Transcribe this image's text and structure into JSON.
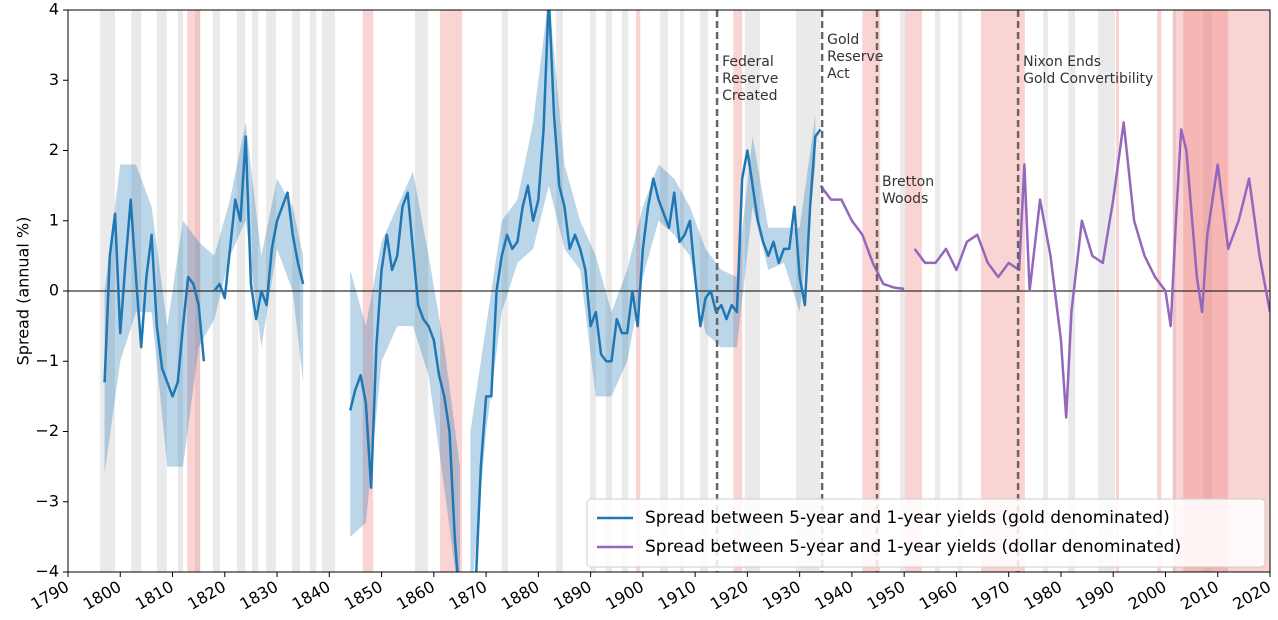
{
  "chart_data": {
    "type": "line",
    "y_label": "Spread (annual %)",
    "xlim": [
      1790,
      2020
    ],
    "ylim": [
      -4,
      4
    ],
    "xticks": [
      1790,
      1800,
      1810,
      1820,
      1830,
      1840,
      1850,
      1860,
      1870,
      1880,
      1890,
      1900,
      1910,
      1920,
      1930,
      1940,
      1950,
      1960,
      1970,
      1980,
      1990,
      2000,
      2010,
      2020
    ],
    "yticks": [
      {
        "value": -4,
        "label": "−4"
      },
      {
        "value": -3,
        "label": "−3"
      },
      {
        "value": -2,
        "label": "−2"
      },
      {
        "value": -1,
        "label": "−1"
      },
      0,
      1,
      2,
      3,
      4
    ],
    "legend": "lower right",
    "zero_line": true,
    "series": [
      {
        "name": "Spread between 5-year and 1-year yields (gold denominated)",
        "color": "#1f77b4",
        "x": [
          1797,
          1798,
          1799,
          1800,
          1801,
          1802,
          1803,
          1804,
          1805,
          1806,
          1807,
          1808,
          1809,
          1810,
          1811,
          1812,
          1813,
          1814,
          1815,
          1816,
          1817,
          1818,
          1819,
          1820,
          1821,
          1822,
          1823,
          1824,
          1825,
          1826,
          1827,
          1828,
          1829,
          1830,
          1831,
          1832,
          1833,
          1834,
          1835,
          1840,
          1844,
          1845,
          1846,
          1847,
          1848,
          1849,
          1850,
          1851,
          1852,
          1853,
          1854,
          1855,
          1856,
          1857,
          1858,
          1859,
          1860,
          1861,
          1862,
          1863,
          1864,
          1865,
          1866,
          1868,
          1869,
          1870,
          1871,
          1872,
          1873,
          1874,
          1875,
          1876,
          1877,
          1878,
          1879,
          1880,
          1881,
          1882,
          1883,
          1884,
          1885,
          1886,
          1887,
          1888,
          1889,
          1890,
          1891,
          1892,
          1893,
          1894,
          1895,
          1896,
          1897,
          1898,
          1899,
          1900,
          1901,
          1902,
          1903,
          1904,
          1905,
          1906,
          1907,
          1908,
          1909,
          1910,
          1911,
          1912,
          1913,
          1914,
          1915,
          1916,
          1917,
          1918,
          1919,
          1920,
          1921,
          1922,
          1923,
          1924,
          1925,
          1926,
          1927,
          1928,
          1929,
          1930,
          1931,
          1932,
          1933,
          1934
        ],
        "values": [
          -1.3,
          0.5,
          1.1,
          -0.6,
          0.4,
          1.3,
          0.2,
          -0.8,
          0.2,
          0.8,
          -0.5,
          -1.1,
          -1.3,
          -1.5,
          -1.3,
          -0.5,
          0.2,
          0.1,
          -0.2,
          -1.0,
          null,
          0.0,
          0.1,
          -0.1,
          0.6,
          1.3,
          1.0,
          2.2,
          0.1,
          -0.4,
          0.0,
          -0.2,
          0.6,
          1.0,
          1.2,
          1.4,
          0.8,
          0.4,
          0.1,
          null,
          -1.7,
          -1.4,
          -1.2,
          -1.6,
          -2.8,
          -0.8,
          0.3,
          0.8,
          0.3,
          0.5,
          1.2,
          1.4,
          0.6,
          -0.2,
          -0.4,
          -0.5,
          -0.7,
          -1.2,
          -1.5,
          -2.0,
          -3.5,
          -4.5,
          null,
          -4.2,
          -2.5,
          -1.5,
          -1.5,
          0.0,
          0.5,
          0.8,
          0.6,
          0.7,
          1.2,
          1.5,
          1.0,
          1.3,
          2.3,
          4.2,
          2.5,
          1.5,
          1.2,
          0.6,
          0.8,
          0.6,
          0.3,
          -0.5,
          -0.3,
          -0.9,
          -1.0,
          -1.0,
          -0.4,
          -0.6,
          -0.6,
          0.0,
          -0.5,
          0.6,
          1.2,
          1.6,
          1.3,
          1.1,
          0.9,
          1.4,
          0.7,
          0.8,
          1.0,
          0.2,
          -0.5,
          -0.1,
          0.0,
          -0.3,
          -0.2,
          -0.4,
          -0.2,
          -0.3,
          1.6,
          2.0,
          1.5,
          1.0,
          0.7,
          0.5,
          0.7,
          0.4,
          0.6,
          0.6,
          1.2,
          0.2,
          -0.2,
          1.2,
          2.2,
          2.3
        ]
      },
      {
        "name": "Spread between 5-year and 1-year yields (dollar denominated)",
        "color": "#9467bd",
        "x": [
          1934,
          1936,
          1938,
          1940,
          1942,
          1944,
          1946,
          1948,
          1950,
          1951,
          1952,
          1954,
          1956,
          1958,
          1960,
          1962,
          1964,
          1966,
          1968,
          1970,
          1972,
          1973,
          1974,
          1976,
          1978,
          1980,
          1981,
          1982,
          1984,
          1986,
          1988,
          1990,
          1992,
          1994,
          1996,
          1998,
          2000,
          2001,
          2002,
          2003,
          2004,
          2006,
          2007,
          2008,
          2010,
          2012,
          2014,
          2016,
          2018,
          2020
        ],
        "values": [
          1.5,
          1.3,
          1.3,
          1.0,
          0.8,
          0.4,
          0.1,
          0.05,
          0.03,
          null,
          0.6,
          0.4,
          0.4,
          0.6,
          0.3,
          0.7,
          0.8,
          0.4,
          0.2,
          0.4,
          0.3,
          1.8,
          0.0,
          1.3,
          0.5,
          -0.7,
          -1.8,
          -0.3,
          1.0,
          0.5,
          0.4,
          1.3,
          2.4,
          1.0,
          0.5,
          0.2,
          0.0,
          -0.5,
          1.0,
          2.3,
          2.0,
          0.2,
          -0.3,
          0.8,
          1.8,
          0.6,
          1.0,
          1.6,
          0.5,
          -0.3
        ]
      }
    ],
    "band": {
      "color": "#1f77b4",
      "x": [
        1797,
        1800,
        1803,
        1806,
        1809,
        1812,
        1815,
        1818,
        1821,
        1824,
        1827,
        1830,
        1833,
        1835,
        1840,
        1844,
        1847,
        1850,
        1853,
        1856,
        1859,
        1862,
        1865,
        1866,
        1867,
        1870,
        1873,
        1876,
        1879,
        1882,
        1885,
        1888,
        1891,
        1894,
        1897,
        1900,
        1903,
        1906,
        1909,
        1912,
        1915,
        1918,
        1921,
        1924,
        1927,
        1930,
        1933
      ],
      "lower": [
        -2.6,
        -1.0,
        -0.3,
        -0.3,
        -2.5,
        -2.5,
        -0.8,
        -0.4,
        0.5,
        1.0,
        -0.8,
        0.6,
        0.0,
        -1.3,
        null,
        -3.5,
        -3.3,
        -1.0,
        -0.5,
        -0.5,
        -1.2,
        -2.8,
        -4.5,
        null,
        -4.5,
        -2.0,
        -0.3,
        0.4,
        0.6,
        1.5,
        0.6,
        0.3,
        -1.5,
        -1.5,
        -1.0,
        0.2,
        1.0,
        0.8,
        0.5,
        -0.6,
        -0.8,
        -0.8,
        1.2,
        0.3,
        0.4,
        -0.3,
        1.8
      ],
      "upper": [
        0.0,
        1.8,
        1.8,
        1.2,
        -0.5,
        1.0,
        0.7,
        0.5,
        1.3,
        2.4,
        0.5,
        1.6,
        1.2,
        0.5,
        null,
        0.3,
        -0.5,
        0.7,
        1.2,
        1.7,
        0.5,
        -0.8,
        -2.5,
        null,
        -2.0,
        -0.5,
        1.0,
        1.3,
        2.4,
        4.2,
        1.8,
        1.0,
        0.5,
        -0.3,
        0.3,
        1.2,
        1.8,
        1.6,
        1.2,
        0.6,
        0.3,
        0.2,
        2.2,
        0.9,
        0.9,
        0.9,
        2.5
      ]
    },
    "recessions": {
      "color": "#bbbbbb",
      "periods": [
        [
          1796.1,
          1799.0
        ],
        [
          1802.1,
          1804.0
        ],
        [
          1807.0,
          1808.9
        ],
        [
          1811.0,
          1812.0
        ],
        [
          1814.3,
          1815.3
        ],
        [
          1817.7,
          1819.1
        ],
        [
          1822.3,
          1823.9
        ],
        [
          1825.2,
          1826.4
        ],
        [
          1827.9,
          1829.8
        ],
        [
          1832.9,
          1834.4
        ],
        [
          1836.3,
          1837.5
        ],
        [
          1838.6,
          1841.1
        ],
        [
          1856.4,
          1858.9
        ],
        [
          1873.0,
          1874.2
        ],
        [
          1883.4,
          1884.7
        ],
        [
          1889.9,
          1891.0
        ],
        [
          1892.9,
          1894.1
        ],
        [
          1896.0,
          1897.2
        ],
        [
          1903.3,
          1904.8
        ],
        [
          1907.1,
          1907.9
        ],
        [
          1910.9,
          1912.5
        ],
        [
          1919.5,
          1922.4
        ],
        [
          1929.3,
          1933.9
        ],
        [
          1949.2,
          1950.2
        ],
        [
          1955.9,
          1956.9
        ],
        [
          1960.3,
          1961.1
        ],
        [
          1976.6,
          1977.5
        ],
        [
          1981.4,
          1982.7
        ],
        [
          1987.1,
          1990.3
        ],
        [
          2001.4,
          2002.0
        ],
        [
          2007.2,
          2008.9
        ]
      ]
    },
    "crises": {
      "color": "#f08080",
      "periods": [
        [
          1812.8,
          1815.3
        ],
        [
          1846.4,
          1848.4
        ],
        [
          1861.2,
          1865.4
        ],
        [
          1898.7,
          1899.5
        ],
        [
          1917.3,
          1919.0
        ],
        [
          1942.0,
          1945.4
        ],
        [
          1950.2,
          1953.4
        ],
        [
          1964.7,
          1973.1
        ],
        [
          1990.5,
          1991.1
        ],
        [
          1998.4,
          1999.2
        ],
        [
          2001.4,
          2012.0
        ],
        [
          2003.4,
          2012.0
        ],
        [
          2012.0,
          2020.0
        ]
      ]
    },
    "events": [
      {
        "x": 1914.2,
        "label_lines": [
          "Federal",
          "Reserve",
          "Created"
        ]
      },
      {
        "x": 1934.3,
        "label_lines": [
          "Gold",
          "Reserve",
          "Act"
        ]
      },
      {
        "x": 1944.8,
        "label_lines": [
          "Bretton",
          "Woods"
        ]
      },
      {
        "x": 1971.8,
        "label_lines": [
          "Nixon Ends",
          "Gold Convertibility"
        ]
      }
    ]
  }
}
